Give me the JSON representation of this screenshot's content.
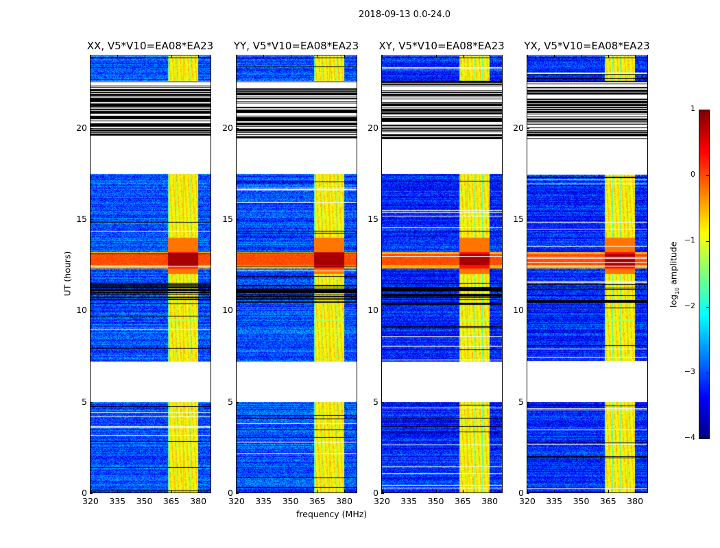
{
  "chart_data": {
    "type": "heatmap",
    "suptitle": "2018-09-13 0.0-24.0",
    "panels": [
      {
        "title": "XX, V5*V10=EA08*EA23"
      },
      {
        "title": "YY, V5*V10=EA08*EA23"
      },
      {
        "title": "XY, V5*V10=EA08*EA23"
      },
      {
        "title": "YX, V5*V10=EA08*EA23"
      }
    ],
    "xlabel": "frequency (MHz)",
    "ylabel": "UT (hours)",
    "xlim": [
      320,
      386.8
    ],
    "ylim": [
      0,
      24
    ],
    "xticks": [
      320,
      335,
      350,
      365,
      380
    ],
    "yticks": [
      0,
      5,
      10,
      15,
      20
    ],
    "colormap": "jet",
    "colorbar": {
      "label_main": "log",
      "label_sub": "10",
      "label_rest": " amplitude",
      "range": [
        -4,
        1
      ],
      "ticks": [
        "1",
        "0",
        "−1",
        "−2",
        "−3",
        "−4"
      ],
      "tick_values": [
        1,
        0,
        -1,
        -2,
        -3,
        -4
      ]
    },
    "features": {
      "rfi_band_mhz": [
        363,
        380
      ],
      "flagged_blank_hours": [
        [
          4.95,
          7.2
        ],
        [
          17.5,
          19.4
        ]
      ],
      "flagged_striped_hours": [
        19.4,
        22.1
      ],
      "strong_rfi_hours": [
        12.3,
        13.2
      ],
      "dense_flag_lines_hours": [
        10.3,
        11.5
      ]
    }
  }
}
